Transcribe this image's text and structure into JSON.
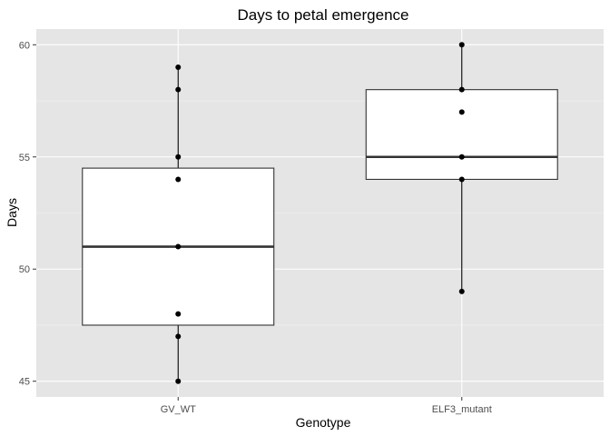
{
  "chart_data": {
    "type": "boxplot",
    "title": "Days to petal emergence",
    "xlabel": "Genotype",
    "ylabel": "Days",
    "ylim": [
      44.3,
      60.7
    ],
    "yticks": [
      45,
      50,
      55,
      60
    ],
    "grid": true,
    "colors": {
      "panel": "#e5e5e5",
      "grid_major": "#ffffff",
      "box_fill": "#ffffff",
      "line": "#000000",
      "median": "#333333",
      "point": "#000000",
      "tick_text": "#4d4d4d"
    },
    "categories": [
      "GV_WT",
      "ELF3_mutant"
    ],
    "boxes": [
      {
        "category": "GV_WT",
        "q1": 47.5,
        "median": 51,
        "q3": 54.5,
        "whisker_low": 45,
        "whisker_high": 59
      },
      {
        "category": "ELF3_mutant",
        "q1": 54,
        "median": 55,
        "q3": 58,
        "whisker_low": 49,
        "whisker_high": 60
      }
    ],
    "points": [
      {
        "category": "GV_WT",
        "values": [
          45,
          47,
          48,
          51,
          54,
          55,
          58,
          59
        ]
      },
      {
        "category": "ELF3_mutant",
        "values": [
          49,
          54,
          55,
          57,
          58,
          60
        ]
      }
    ]
  }
}
